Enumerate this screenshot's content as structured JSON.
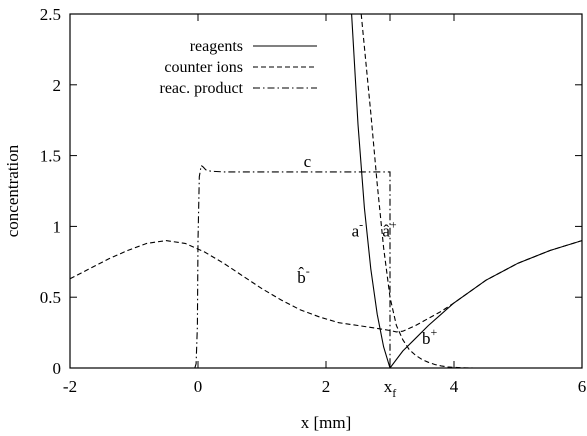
{
  "chart_data": {
    "type": "line",
    "xlabel": "x  [mm]",
    "ylabel": "concentration",
    "xlim": [
      -2,
      6
    ],
    "ylim": [
      0,
      2.5
    ],
    "x_ticks": [
      {
        "value": -2,
        "label": "-2"
      },
      {
        "value": 0,
        "label": "0"
      },
      {
        "value": 2,
        "label": "2"
      },
      {
        "value": 3.0,
        "label": "x",
        "sub": "f"
      },
      {
        "value": 4,
        "label": "4"
      },
      {
        "value": 6,
        "label": "6"
      }
    ],
    "y_ticks": [
      {
        "value": 0,
        "label": "0"
      },
      {
        "value": 0.5,
        "label": "0.5"
      },
      {
        "value": 1,
        "label": "1"
      },
      {
        "value": 1.5,
        "label": "1.5"
      },
      {
        "value": 2,
        "label": "2"
      },
      {
        "value": 2.5,
        "label": "2.5"
      }
    ],
    "grid": false,
    "legend_position": "top-center",
    "legend": [
      {
        "label": "reagents",
        "style": "solid"
      },
      {
        "label": "counter ions",
        "style": "dashed"
      },
      {
        "label": "reac. product",
        "style": "dashdot"
      }
    ],
    "series": [
      {
        "name": "reagents",
        "style": "solid",
        "x": [
          2.4,
          2.5,
          2.6,
          2.7,
          2.8,
          2.9,
          3.0
        ],
        "y": [
          2.5,
          1.72,
          1.13,
          0.7,
          0.38,
          0.15,
          0.0
        ]
      },
      {
        "name": "reagents",
        "style": "solid",
        "x": [
          3.0,
          3.2,
          3.4,
          3.6,
          3.8,
          4.0,
          4.5,
          5.0,
          5.5,
          6.0
        ],
        "y": [
          0.0,
          0.12,
          0.21,
          0.3,
          0.38,
          0.46,
          0.62,
          0.74,
          0.83,
          0.9
        ]
      },
      {
        "name": "counter ions",
        "style": "dashed",
        "x": [
          2.55,
          2.7,
          2.8,
          2.9,
          3.0,
          3.1,
          3.2,
          3.3,
          3.4,
          3.5,
          3.6,
          3.7,
          3.8,
          3.9,
          4.0,
          4.1,
          4.2,
          4.3
        ],
        "y": [
          2.5,
          1.8,
          1.3,
          0.85,
          0.5,
          0.3,
          0.2,
          0.13,
          0.09,
          0.06,
          0.04,
          0.025,
          0.015,
          0.008,
          0.004,
          0.002,
          0.001,
          0.0
        ]
      },
      {
        "name": "counter ions",
        "style": "dashed",
        "x": [
          -2.0,
          -1.7,
          -1.4,
          -1.1,
          -0.8,
          -0.5,
          -0.2,
          0.1,
          0.4,
          0.7,
          1.0,
          1.3,
          1.6,
          1.9,
          2.2,
          2.5,
          2.8,
          3.0,
          3.1,
          3.2,
          3.3,
          3.4,
          3.6,
          3.8,
          4.0,
          4.5,
          5.0,
          5.5,
          6.0
        ],
        "y": [
          0.63,
          0.7,
          0.77,
          0.83,
          0.88,
          0.9,
          0.88,
          0.82,
          0.74,
          0.65,
          0.56,
          0.48,
          0.41,
          0.36,
          0.32,
          0.3,
          0.28,
          0.265,
          0.255,
          0.26,
          0.28,
          0.3,
          0.35,
          0.4,
          0.46,
          0.62,
          0.74,
          0.83,
          0.9
        ]
      },
      {
        "name": "reac. product",
        "style": "dashdot",
        "x": [
          -0.05,
          -0.03,
          -0.01,
          0.0,
          0.02,
          0.05,
          0.08,
          0.12,
          0.2,
          0.4,
          1.0,
          2.0,
          2.8,
          3.0,
          3.0
        ],
        "y": [
          0.0,
          0.03,
          0.3,
          0.9,
          1.35,
          1.43,
          1.42,
          1.4,
          1.39,
          1.385,
          1.385,
          1.385,
          1.385,
          1.385,
          0.0
        ]
      }
    ],
    "annotations": [
      {
        "text": "c",
        "x": 1.65,
        "y": 1.42
      },
      {
        "text": "a",
        "sup": "-",
        "x": 2.4,
        "y": 0.93
      },
      {
        "text": "â",
        "sup": "+",
        "x": 2.88,
        "y": 0.93
      },
      {
        "text": "b̂",
        "sup": "-",
        "x": 1.55,
        "y": 0.6
      },
      {
        "text": "b",
        "sup": "+",
        "x": 3.5,
        "y": 0.17
      }
    ]
  }
}
